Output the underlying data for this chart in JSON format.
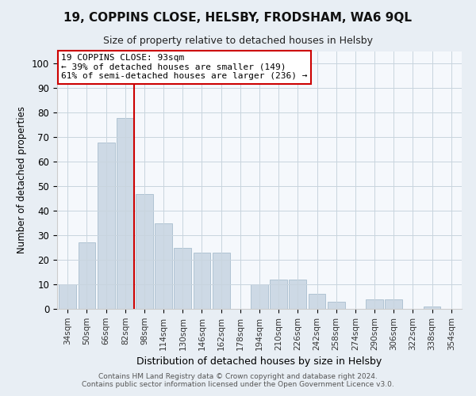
{
  "title1": "19, COPPINS CLOSE, HELSBY, FRODSHAM, WA6 9QL",
  "title2": "Size of property relative to detached houses in Helsby",
  "xlabel": "Distribution of detached houses by size in Helsby",
  "ylabel": "Number of detached properties",
  "bar_labels": [
    "34sqm",
    "50sqm",
    "66sqm",
    "82sqm",
    "98sqm",
    "114sqm",
    "130sqm",
    "146sqm",
    "162sqm",
    "178sqm",
    "194sqm",
    "210sqm",
    "226sqm",
    "242sqm",
    "258sqm",
    "274sqm",
    "290sqm",
    "306sqm",
    "322sqm",
    "338sqm",
    "354sqm"
  ],
  "bar_values": [
    10,
    27,
    68,
    78,
    47,
    35,
    25,
    23,
    23,
    0,
    10,
    12,
    12,
    6,
    3,
    0,
    4,
    4,
    0,
    1,
    0
  ],
  "bar_color": "#cdd9e5",
  "bar_edge_color": "#a8bece",
  "vline_color": "#cc0000",
  "annotation_title": "19 COPPINS CLOSE: 93sqm",
  "annotation_line1": "← 39% of detached houses are smaller (149)",
  "annotation_line2": "61% of semi-detached houses are larger (236) →",
  "annotation_box_color": "#ffffff",
  "annotation_box_edge": "#cc0000",
  "ylim": [
    0,
    100
  ],
  "footnote1": "Contains HM Land Registry data © Crown copyright and database right 2024.",
  "footnote2": "Contains public sector information licensed under the Open Government Licence v3.0.",
  "background_color": "#e8eef4",
  "plot_background": "#f5f8fc",
  "grid_color": "#c8d4de"
}
